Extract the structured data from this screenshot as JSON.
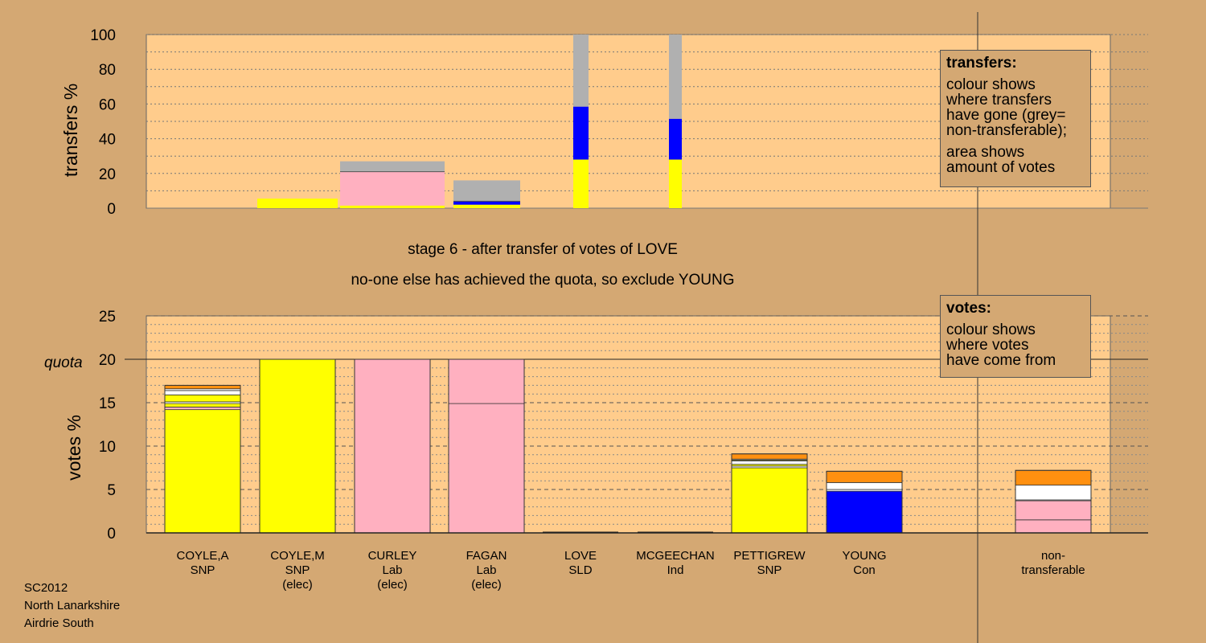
{
  "chart_data": [
    {
      "type": "bar",
      "ylabel": "transfers %",
      "ylim": [
        0,
        100
      ],
      "yticks": [
        "0",
        "20",
        "40",
        "60",
        "80",
        "100"
      ],
      "grid": true,
      "bars": [
        {
          "segments": [
            {
              "color": "#ffff00",
              "value": 5.5
            }
          ]
        },
        {
          "segments": [
            {
              "color": "#ffff00",
              "value": 1.5
            },
            {
              "color": "#ffb0c0",
              "value": 19.5
            },
            {
              "color": "#b0b0b0",
              "value": 6
            }
          ]
        },
        {
          "segments": [
            {
              "color": "#ffff00",
              "value": 2
            },
            {
              "color": "#0000ff",
              "value": 2
            },
            {
              "color": "#b0b0b0",
              "value": 12
            }
          ]
        },
        {
          "segments": [
            {
              "color": "#ffff00",
              "value": 28
            },
            {
              "color": "#0000ff",
              "value": 30.5
            },
            {
              "color": "#b0b0b0",
              "value": 41.5
            }
          ]
        },
        {
          "segments": [
            {
              "color": "#ffff00",
              "value": 28
            },
            {
              "color": "#0000ff",
              "value": 23.5
            },
            {
              "color": "#b0b0b0",
              "value": 48.5
            }
          ]
        }
      ],
      "legend": {
        "title": "transfers:",
        "lines": [
          "colour shows",
          "where transfers",
          "have gone (grey=",
          "non-transferable);"
        ],
        "lines2": [
          "area shows",
          "amount of votes"
        ],
        "placement": "top-right"
      }
    },
    {
      "type": "bar",
      "ylabel": "votes %",
      "ylim": [
        0,
        25
      ],
      "yticks": [
        "0",
        "5",
        "10",
        "15",
        "20",
        "25"
      ],
      "quota_label": "quota",
      "quota": 20,
      "grid": true,
      "categories": [
        {
          "name": "COYLE,A",
          "party": "SNP",
          "status": ""
        },
        {
          "name": "COYLE,M",
          "party": "SNP",
          "status": "(elec)"
        },
        {
          "name": "CURLEY",
          "party": "Lab",
          "status": "(elec)"
        },
        {
          "name": "FAGAN",
          "party": "Lab",
          "status": "(elec)"
        },
        {
          "name": "LOVE",
          "party": "SLD",
          "status": ""
        },
        {
          "name": "MCGEECHAN",
          "party": "Ind",
          "status": ""
        },
        {
          "name": "PETTIGREW",
          "party": "SNP",
          "status": ""
        },
        {
          "name": "YOUNG",
          "party": "Con",
          "status": ""
        },
        {
          "name": "non-",
          "party": "transferable",
          "status": ""
        }
      ],
      "stacks": [
        [
          {
            "color": "#ffff00",
            "value": 14.2
          },
          {
            "color": "#ffb0c0",
            "value": 0.3
          },
          {
            "color": "#ffff00",
            "value": 0.4
          },
          {
            "color": "#ffffff",
            "value": 0.2
          },
          {
            "color": "#ffff00",
            "value": 0.8
          },
          {
            "color": "#ffffff",
            "value": 0.5
          },
          {
            "color": "#ffffff",
            "value": 0.2
          },
          {
            "color": "#ff9010",
            "value": 0.4
          }
        ],
        [
          {
            "color": "#ffff00",
            "value": 20
          }
        ],
        [
          {
            "color": "#ffb0c0",
            "value": 20
          }
        ],
        [
          {
            "color": "#ffb0c0",
            "value": 14.9
          },
          {
            "color": "#ffb0c0",
            "value": 5.1
          }
        ],
        [],
        [],
        [
          {
            "color": "#ffff00",
            "value": 7.5
          },
          {
            "color": "#ffffff",
            "value": 0.2
          },
          {
            "color": "#ffff00",
            "value": 0.2
          },
          {
            "color": "#ffffff",
            "value": 0.4
          },
          {
            "color": "#ffff00",
            "value": 0.1
          },
          {
            "color": "#ffffff",
            "value": 0.1
          },
          {
            "color": "#ff9010",
            "value": 0.6
          }
        ],
        [
          {
            "color": "#0000ff",
            "value": 4.8
          },
          {
            "color": "#ffffff",
            "value": 0.2
          },
          {
            "color": "#ffffff",
            "value": 0.8
          },
          {
            "color": "#ff9010",
            "value": 1.3
          }
        ],
        [
          {
            "color": "#ffb0c0",
            "value": 1.5
          },
          {
            "color": "#ffb0c0",
            "value": 2.2
          },
          {
            "color": "#ffffff",
            "value": 0.1
          },
          {
            "color": "#ffffff",
            "value": 1.7
          },
          {
            "color": "#ff9010",
            "value": 1.7
          }
        ]
      ],
      "legend": {
        "title": "votes:",
        "lines": [
          "colour shows",
          "where votes",
          "have come from"
        ],
        "placement": "top-right"
      }
    }
  ],
  "stage_line1": "stage 6 - after transfer of votes of LOVE",
  "stage_line2": "no-one else has achieved the quota, so exclude YOUNG",
  "footer": {
    "line1": "SC2012",
    "line2": "North Lanarkshire",
    "line3": "Airdrie South"
  },
  "colors": {
    "background": "#d4a873",
    "plot_area": "#ffcc8c"
  }
}
